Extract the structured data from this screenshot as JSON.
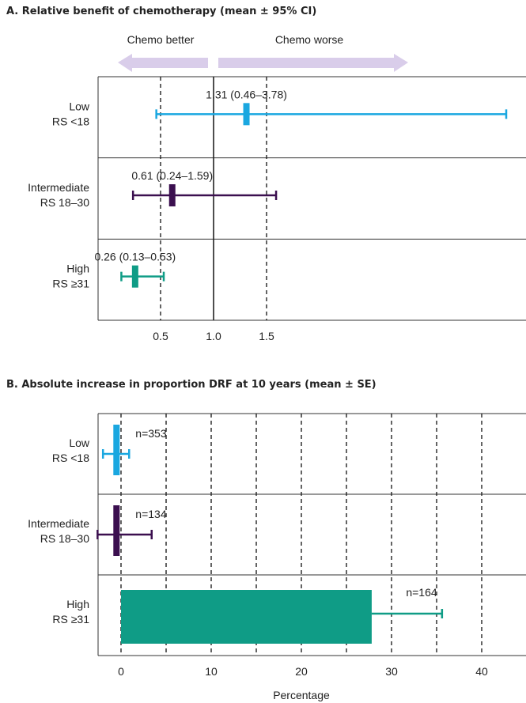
{
  "chart_data": [
    {
      "type": "forest",
      "title": "A. Relative benefit of chemotherapy (mean ± 95% CI)",
      "direction_labels": {
        "left": "Chemo better",
        "right": "Chemo worse"
      },
      "x_ticks": [
        "0.5",
        "1.0",
        "1.5"
      ],
      "xlim": [
        0.0,
        2.95
      ],
      "reference_lines": [
        0.5,
        1.0,
        1.5
      ],
      "rows": [
        {
          "group": "Low",
          "sublabel": "RS <18",
          "estimate": 1.31,
          "lower": 0.46,
          "upper": 3.78,
          "label": "1.31 (0.46–3.78)",
          "color": "#1aa7e0"
        },
        {
          "group": "Intermediate",
          "sublabel": "RS 18–30",
          "estimate": 0.61,
          "lower": 0.24,
          "upper": 1.59,
          "label": "0.61 (0.24–1.59)",
          "color": "#3b0f4f"
        },
        {
          "group": "High",
          "sublabel": "RS ≥31",
          "estimate": 0.26,
          "lower": 0.13,
          "upper": 0.53,
          "label": "0.26 (0.13–0.53)",
          "color": "#0f9c86"
        }
      ]
    },
    {
      "type": "bar",
      "orientation": "horizontal",
      "title": "B. Absolute increase in proportion DRF at 10 years (mean ± SE)",
      "xlabel": "Percentage",
      "x_ticks": [
        "0",
        "10",
        "20",
        "30",
        "40"
      ],
      "xlim": [
        -2.5,
        45.8
      ],
      "gridlines": [
        0,
        5,
        10,
        15,
        20,
        25,
        30,
        35,
        40,
        45
      ],
      "rows": [
        {
          "group": "Low",
          "sublabel": "RS <18",
          "value": -0.5,
          "se_low": -2.0,
          "se_high": 0.9,
          "n_label": "n=353",
          "color": "#1aa7e0"
        },
        {
          "group": "Intermediate",
          "sublabel": "RS 18–30",
          "value": -0.5,
          "se_low": -2.6,
          "se_high": 3.4,
          "n_label": "n=134",
          "color": "#3b0f4f"
        },
        {
          "group": "High",
          "sublabel": "RS ≥31",
          "value": 27.8,
          "se_low": 0,
          "se_high": 35.6,
          "n_label": "n=164",
          "color": "#0f9c86"
        }
      ]
    }
  ]
}
